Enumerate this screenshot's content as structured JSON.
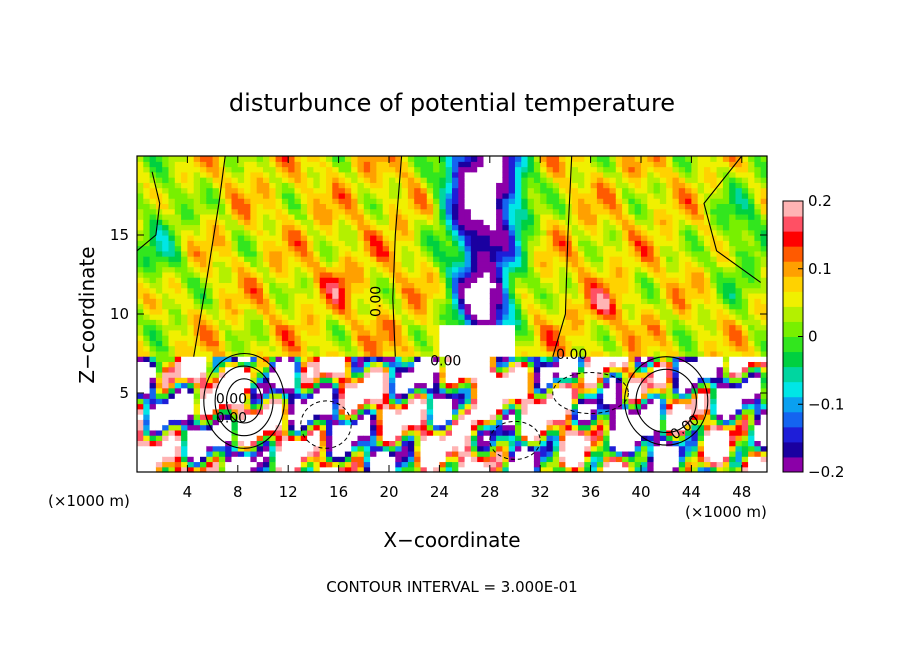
{
  "chart_data": {
    "type": "heatmap",
    "title": "disturbunce of potential temperature",
    "xlabel": "X−coordinate",
    "ylabel": "Z−coordinate",
    "x_unit_left": "(×1000 m)",
    "x_unit_right": "(×1000 m)",
    "xlim": [
      0,
      50
    ],
    "ylim": [
      0,
      20
    ],
    "x_ticks": [
      {
        "value": 4,
        "label": "4"
      },
      {
        "value": 8,
        "label": "8"
      },
      {
        "value": 12,
        "label": "12"
      },
      {
        "value": 16,
        "label": "16"
      },
      {
        "value": 20,
        "label": "20"
      },
      {
        "value": 24,
        "label": "24"
      },
      {
        "value": 28,
        "label": "28"
      },
      {
        "value": 32,
        "label": "32"
      },
      {
        "value": 36,
        "label": "36"
      },
      {
        "value": 40,
        "label": "40"
      },
      {
        "value": 44,
        "label": "44"
      },
      {
        "value": 48,
        "label": "48"
      }
    ],
    "y_ticks": [
      {
        "value": 5,
        "label": "5"
      },
      {
        "value": 10,
        "label": "10"
      },
      {
        "value": 15,
        "label": "15"
      }
    ],
    "colorbar": {
      "min": -0.2,
      "max": 0.2,
      "ticks": [
        {
          "value": 0.2,
          "label": "0.2"
        },
        {
          "value": 0.1,
          "label": "0.1"
        },
        {
          "value": 0,
          "label": "0"
        },
        {
          "value": -0.1,
          "label": "−0.1"
        },
        {
          "value": -0.2,
          "label": "−0.2"
        }
      ],
      "colors": [
        "#8b00a8",
        "#1a00a0",
        "#1e1ed8",
        "#1464f0",
        "#0aa0f0",
        "#00e6e6",
        "#00d6a0",
        "#00d040",
        "#32e61e",
        "#78f000",
        "#b4f000",
        "#f0f000",
        "#ffd200",
        "#ffa000",
        "#ff5a00",
        "#ff0000",
        "#ff5064",
        "#ffb4b4"
      ]
    },
    "contour_labels": [
      {
        "x": 19.0,
        "z": 10.8,
        "text": "0.00",
        "rotate": -90
      },
      {
        "x": 24.5,
        "z": 7.0,
        "text": "0.00",
        "rotate": 0
      },
      {
        "x": 34.5,
        "z": 7.4,
        "text": "0.00",
        "rotate": 0
      },
      {
        "x": 7.5,
        "z": 4.6,
        "text": "0.00",
        "rotate": 0
      },
      {
        "x": 7.5,
        "z": 3.4,
        "text": "0.00",
        "rotate": 0
      },
      {
        "x": 43.5,
        "z": 2.8,
        "text": "0.00",
        "rotate": -35
      }
    ],
    "annotation": "CONTOUR INTERVAL = 3.000E-01"
  }
}
